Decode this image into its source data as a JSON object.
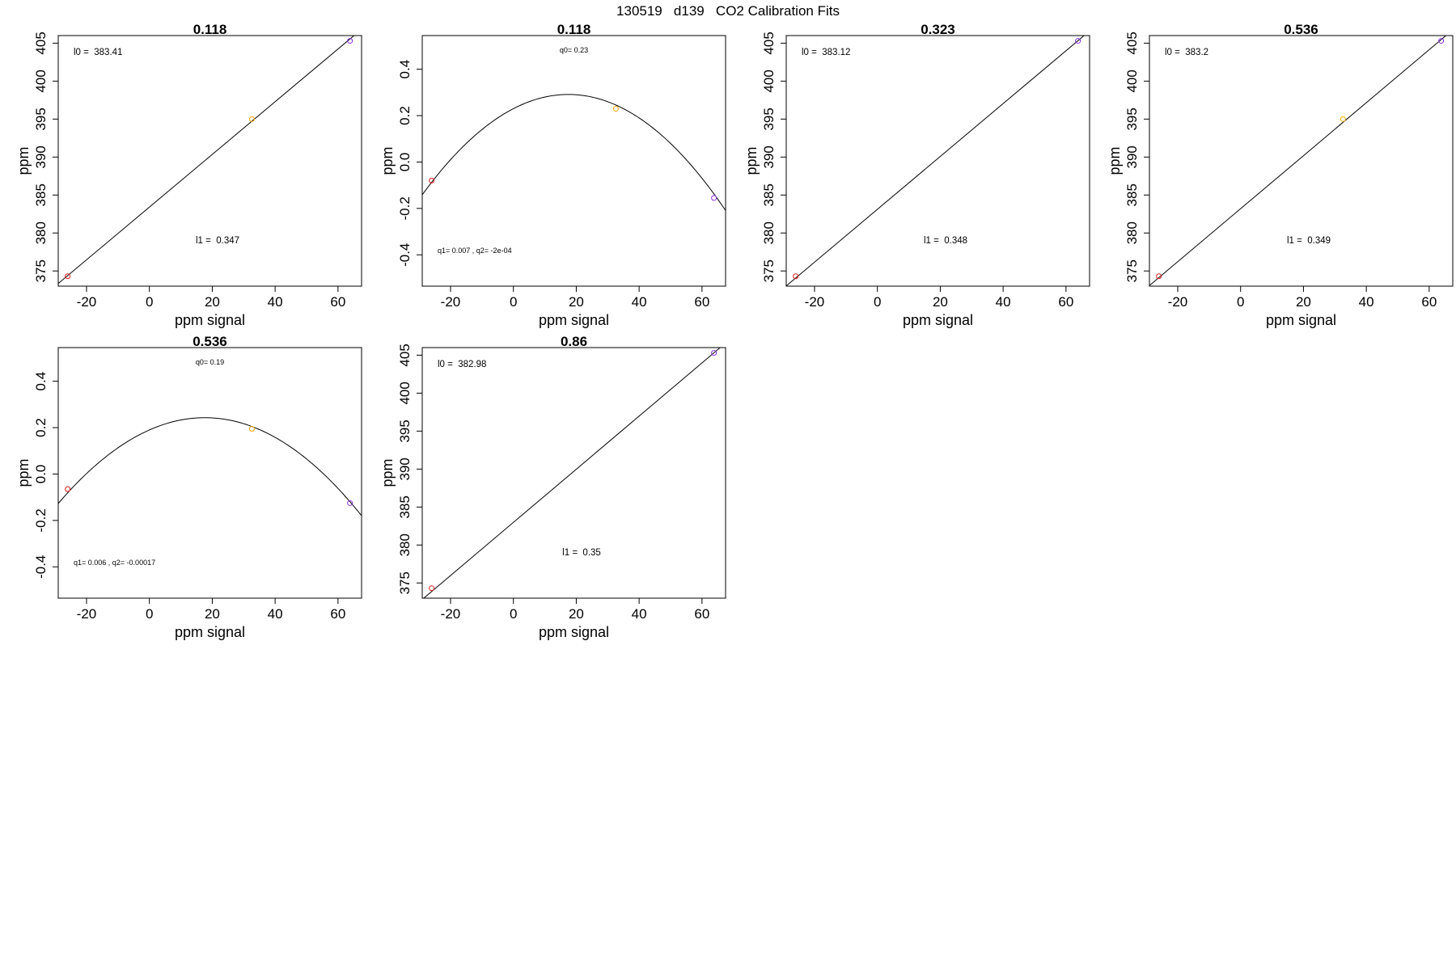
{
  "figure_title": "130519   d139   CO2 Calibration Fits",
  "colors": {
    "point_low": "#e31a1c",
    "point_mid": "#ffa500",
    "point_high": "#8a2be2",
    "line": "#000000"
  },
  "chart_data": [
    {
      "type": "line",
      "title": "0.118",
      "xlabel": "ppm signal",
      "ylabel": "ppm",
      "xlim": [
        -29,
        67.5
      ],
      "ylim": [
        373.0,
        406.0
      ],
      "xticks": [
        -20,
        0,
        20,
        40,
        60
      ],
      "yticks": [
        375,
        380,
        385,
        390,
        395,
        400,
        405
      ],
      "points": [
        {
          "x": -26,
          "y": 374.3
        },
        {
          "x": 32.6,
          "y": 395.0
        },
        {
          "x": 63.8,
          "y": 405.3
        }
      ],
      "fit": {
        "kind": "linear",
        "c0": 383.41,
        "c1": 0.347
      },
      "annotations": [
        {
          "text": "l0 =  383.41",
          "size": "lg"
        },
        {
          "text": "l1 =  0.347",
          "size": "lg"
        }
      ]
    },
    {
      "type": "line",
      "title": "0.118",
      "xlabel": "ppm signal",
      "ylabel": "ppm",
      "xlim": [
        -29,
        67.5
      ],
      "ylim": [
        -0.535,
        0.545
      ],
      "xticks": [
        -20,
        0,
        20,
        40,
        60
      ],
      "yticks": [
        -0.4,
        -0.2,
        0.0,
        0.2,
        0.4
      ],
      "points": [
        {
          "x": -26,
          "y": -0.08
        },
        {
          "x": 32.6,
          "y": 0.23
        },
        {
          "x": 63.8,
          "y": -0.155
        }
      ],
      "fit": {
        "kind": "quadratic",
        "c0": 0.23,
        "c1": 0.007,
        "c2": -0.0002
      },
      "annotations": [
        {
          "text": "q0= 0.23",
          "size": "sm"
        },
        {
          "text": "q1= 0.007 , q2= -2e-04",
          "size": "sm"
        }
      ]
    },
    {
      "type": "line",
      "title": "0.323",
      "xlabel": "ppm signal",
      "ylabel": "ppm",
      "xlim": [
        -29,
        67.5
      ],
      "ylim": [
        373.0,
        406.0
      ],
      "xticks": [
        -20,
        0,
        20,
        40,
        60
      ],
      "yticks": [
        375,
        380,
        385,
        390,
        395,
        400,
        405
      ],
      "points": [
        {
          "x": -26,
          "y": 374.3
        },
        {
          "x": 63.8,
          "y": 405.3
        }
      ],
      "fit": {
        "kind": "linear",
        "c0": 383.12,
        "c1": 0.348
      },
      "annotations": [
        {
          "text": "l0 =  383.12",
          "size": "lg"
        },
        {
          "text": "l1 =  0.348",
          "size": "lg"
        }
      ]
    },
    {
      "type": "line",
      "title": "0.536",
      "xlabel": "ppm signal",
      "ylabel": "ppm",
      "xlim": [
        -29,
        67.5
      ],
      "ylim": [
        373.0,
        406.0
      ],
      "xticks": [
        -20,
        0,
        20,
        40,
        60
      ],
      "yticks": [
        375,
        380,
        385,
        390,
        395,
        400,
        405
      ],
      "points": [
        {
          "x": -26,
          "y": 374.3
        },
        {
          "x": 32.6,
          "y": 395.0
        },
        {
          "x": 63.8,
          "y": 405.3
        }
      ],
      "fit": {
        "kind": "linear",
        "c0": 383.2,
        "c1": 0.349
      },
      "annotations": [
        {
          "text": "l0 =  383.2",
          "size": "lg"
        },
        {
          "text": "l1 =  0.349",
          "size": "lg"
        }
      ]
    },
    {
      "type": "line",
      "title": "0.536",
      "xlabel": "ppm signal",
      "ylabel": "ppm",
      "xlim": [
        -29,
        67.5
      ],
      "ylim": [
        -0.535,
        0.545
      ],
      "xticks": [
        -20,
        0,
        20,
        40,
        60
      ],
      "yticks": [
        -0.4,
        -0.2,
        0.0,
        0.2,
        0.4
      ],
      "points": [
        {
          "x": -26,
          "y": -0.065
        },
        {
          "x": 32.6,
          "y": 0.195
        },
        {
          "x": 63.8,
          "y": -0.125
        }
      ],
      "fit": {
        "kind": "quadratic",
        "c0": 0.19,
        "c1": 0.006,
        "c2": -0.00017
      },
      "annotations": [
        {
          "text": "q0= 0.19",
          "size": "sm"
        },
        {
          "text": "q1= 0.006 , q2= -0.00017",
          "size": "sm"
        }
      ]
    },
    {
      "type": "line",
      "title": "0.86",
      "xlabel": "ppm signal",
      "ylabel": "ppm",
      "xlim": [
        -29,
        67.5
      ],
      "ylim": [
        373.0,
        406.0
      ],
      "xticks": [
        -20,
        0,
        20,
        40,
        60
      ],
      "yticks": [
        375,
        380,
        385,
        390,
        395,
        400,
        405
      ],
      "points": [
        {
          "x": -26,
          "y": 374.3
        },
        {
          "x": 63.8,
          "y": 405.3
        }
      ],
      "fit": {
        "kind": "linear",
        "c0": 382.98,
        "c1": 0.35
      },
      "annotations": [
        {
          "text": "l0 =  382.98",
          "size": "lg"
        },
        {
          "text": "l1 =  0.35",
          "size": "lg"
        }
      ]
    }
  ]
}
